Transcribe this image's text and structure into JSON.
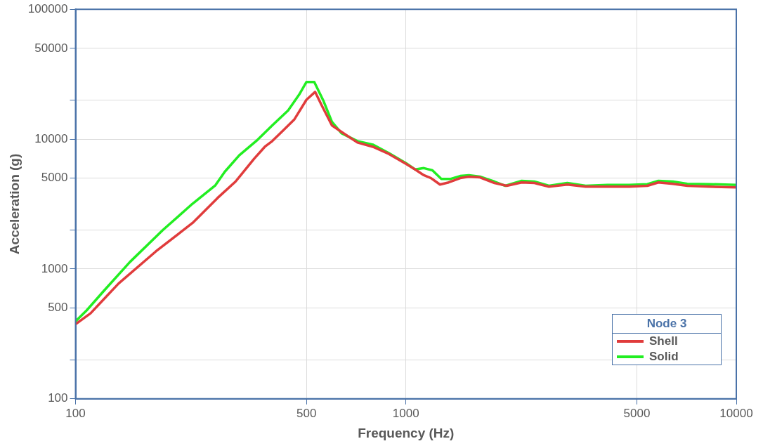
{
  "chart_data": {
    "type": "line",
    "xlabel": "Frequency (Hz)",
    "ylabel": "Acceleration (g)",
    "legend_title": "Node 3",
    "legend": "bottom right",
    "grid": true,
    "log": "xy",
    "marker": "none",
    "line_style": "solid",
    "xlim": [
      100,
      10000
    ],
    "xticks": [
      100,
      500,
      1000,
      5000,
      10000
    ],
    "ylim": [
      100,
      100000
    ],
    "yticks": [
      100,
      {
        "value": 200,
        "label": null
      },
      500,
      1000,
      {
        "value": 2000,
        "label": null
      },
      5000,
      10000,
      {
        "value": 20000,
        "label": null
      },
      50000,
      100000
    ],
    "series": [
      {
        "name": "Shell",
        "color": "#e03c3c",
        "x": [
          100,
          111,
          119,
          135,
          175,
          226,
          269,
          305,
          347,
          374,
          394,
          425,
          459,
          500,
          531,
          556,
          597,
          638,
          713,
          794,
          888,
          1000,
          1066,
          1133,
          1191,
          1268,
          1347,
          1460,
          1552,
          1675,
          1854,
          2020,
          2240,
          2450,
          2710,
          3080,
          3500,
          4075,
          4745,
          5380,
          5810,
          6430,
          7110,
          8280,
          10000
        ],
        "values": [
          376,
          455,
          550,
          773,
          1365,
          2260,
          3520,
          4710,
          7050,
          8730,
          9660,
          11670,
          14130,
          20100,
          23100,
          18200,
          12770,
          11370,
          9420,
          8730,
          7690,
          6450,
          5840,
          5270,
          5010,
          4470,
          4640,
          5010,
          5140,
          5070,
          4590,
          4370,
          4640,
          4590,
          4300,
          4470,
          4300,
          4300,
          4300,
          4370,
          4640,
          4530,
          4370,
          4300,
          4250
        ]
      },
      {
        "name": "Solid",
        "color": "#22ee22",
        "x": [
          100,
          108,
          122,
          146,
          184,
          226,
          265,
          283,
          313,
          356,
          394,
          440,
          475,
          500,
          528,
          562,
          597,
          638,
          713,
          794,
          888,
          1000,
          1066,
          1133,
          1203,
          1280,
          1367,
          1460,
          1552,
          1675,
          1854,
          2000,
          2240,
          2450,
          2710,
          3080,
          3500,
          4075,
          4745,
          5380,
          5810,
          6430,
          7110,
          8280,
          10000
        ],
        "values": [
          395,
          479,
          681,
          1130,
          2000,
          3180,
          4410,
          5610,
          7500,
          9910,
          12770,
          16630,
          22000,
          27540,
          27540,
          19880,
          13580,
          11110,
          9660,
          9070,
          7800,
          6530,
          5840,
          5980,
          5750,
          4940,
          4940,
          5200,
          5270,
          5140,
          4710,
          4370,
          4770,
          4710,
          4370,
          4590,
          4370,
          4440,
          4440,
          4500,
          4770,
          4710,
          4530,
          4500,
          4440
        ]
      }
    ]
  }
}
